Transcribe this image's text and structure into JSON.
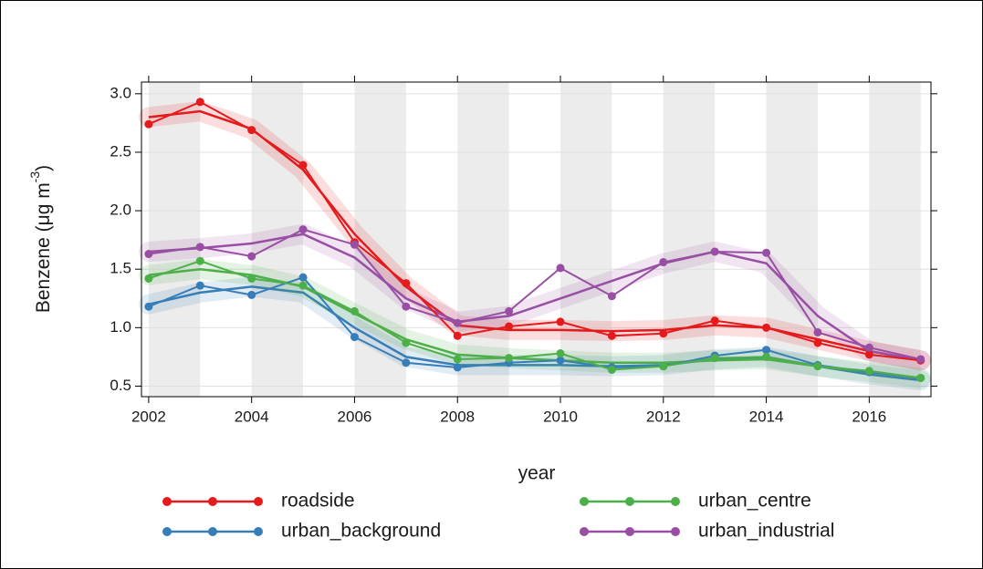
{
  "chart_data": {
    "type": "line",
    "xlabel": "year",
    "ylabel": "Benzene (μg m",
    "ylabel_sup": "-3",
    "ylabel_end": ")",
    "x": [
      2002,
      2003,
      2004,
      2005,
      2006,
      2007,
      2008,
      2009,
      2010,
      2011,
      2012,
      2013,
      2014,
      2015,
      2016,
      2017
    ],
    "xlim": [
      2001.86,
      2017.2
    ],
    "xticks": [
      2002,
      2004,
      2006,
      2008,
      2010,
      2012,
      2014,
      2016
    ],
    "ylim": [
      0.41,
      3.1
    ],
    "yticks": [
      {
        "value": 0.5,
        "label": "0.5"
      },
      {
        "value": 1,
        "label": "1.0"
      },
      {
        "value": 1.5,
        "label": "1.5"
      },
      {
        "value": 2,
        "label": "2.0"
      },
      {
        "value": 2.5,
        "label": "2.5"
      },
      {
        "value": 3,
        "label": "3.0"
      }
    ],
    "grid": true,
    "series": [
      {
        "name": "roadside",
        "color": "#e41a1c",
        "values": [
          2.74,
          2.93,
          2.69,
          2.39,
          1.73,
          1.38,
          0.93,
          1.01,
          1.05,
          0.93,
          0.95,
          1.06,
          1.0,
          0.87,
          0.77,
          0.72
        ],
        "smooth": [
          2.8,
          2.85,
          2.7,
          2.35,
          1.8,
          1.35,
          1.02,
          0.98,
          0.98,
          0.97,
          0.98,
          1.02,
          1.0,
          0.9,
          0.8,
          0.72
        ]
      },
      {
        "name": "urban_background",
        "color": "#377eb8",
        "values": [
          1.18,
          1.36,
          1.28,
          1.43,
          0.92,
          0.7,
          0.66,
          0.7,
          0.72,
          0.66,
          0.67,
          0.76,
          0.81,
          0.68,
          0.62,
          0.57
        ],
        "smooth": [
          1.2,
          1.3,
          1.35,
          1.3,
          1.0,
          0.75,
          0.68,
          0.68,
          0.68,
          0.67,
          0.68,
          0.73,
          0.75,
          0.67,
          0.6,
          0.55
        ]
      },
      {
        "name": "urban_centre",
        "color": "#4daf4a",
        "values": [
          1.42,
          1.57,
          1.42,
          1.36,
          1.14,
          0.87,
          0.73,
          0.74,
          0.78,
          0.64,
          0.67,
          0.74,
          0.75,
          0.67,
          0.63,
          0.57
        ],
        "smooth": [
          1.45,
          1.5,
          1.45,
          1.35,
          1.12,
          0.9,
          0.77,
          0.74,
          0.72,
          0.7,
          0.7,
          0.72,
          0.73,
          0.67,
          0.62,
          0.57
        ]
      },
      {
        "name": "urban_industrial",
        "color": "#984ea3",
        "values": [
          1.63,
          1.69,
          1.61,
          1.84,
          1.71,
          1.18,
          1.04,
          1.14,
          1.51,
          1.27,
          1.56,
          1.65,
          1.64,
          0.96,
          0.83,
          0.73
        ],
        "smooth": [
          1.65,
          1.68,
          1.72,
          1.8,
          1.6,
          1.25,
          1.05,
          1.1,
          1.25,
          1.4,
          1.55,
          1.65,
          1.55,
          1.1,
          0.8,
          0.72
        ]
      }
    ]
  }
}
